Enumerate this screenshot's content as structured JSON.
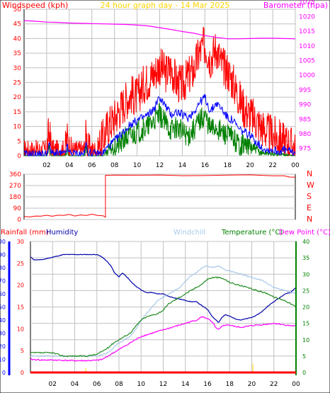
{
  "header": {
    "windspeed_label": "Windspeed (kph)",
    "title": "24 hour graph day - 14 Mar 2025",
    "barometer_label": "Barometer (hpa)"
  },
  "colors": {
    "background": "#ffffff",
    "grid": "#c0c0c0",
    "frame": "#000000",
    "windspeed_axis": "#ff0000",
    "title": "#ffd400",
    "barometer": "#ff00ff",
    "gust": "#ff0000",
    "average": "#0000ff",
    "wind_low": "#008000",
    "wind_direction": "#ff0000",
    "rainfall": "#ff0000",
    "humidity": "#0000aa",
    "windchill": "#a8c8e8",
    "temperature": "#228b22",
    "dewpoint": "#ff00ff",
    "rain_event": "#ffd700",
    "humidity_axis": "#0000ff",
    "temp_axis": "#008000"
  },
  "bottom_header": {
    "rainfall_label": "Rainfall (mm)",
    "humidity_label": "Humidity",
    "windchill_label": "Windchill",
    "temperature_label": "Temperature (°C)",
    "dewpoint_label": "Dew Point (°C)"
  },
  "direction_labels": [
    "N",
    "W",
    "S",
    "E",
    "N"
  ],
  "x_ticks": [
    "02",
    "04",
    "06",
    "08",
    "10",
    "12",
    "14",
    "16",
    "18",
    "20",
    "22",
    "00"
  ],
  "chart_data": [
    {
      "type": "line",
      "id": "wind",
      "title": "24 hour graph day - 14 Mar 2025",
      "ylabel": "Windspeed (kph)",
      "y2label": "Barometer (hpa)",
      "xlim": [
        0,
        24
      ],
      "ylim": [
        0,
        50
      ],
      "y_ticks": [
        0,
        5,
        10,
        15,
        20,
        25,
        30,
        35,
        40,
        45,
        50
      ],
      "y2lim": [
        972.5,
        1022.5
      ],
      "y2_ticks": [
        975,
        980,
        985,
        990,
        995,
        1000,
        1005,
        1010,
        1015,
        1020,
        1025
      ],
      "series": [
        {
          "name": "Gust",
          "x": [
            0,
            2,
            2.2,
            2.4,
            2.6,
            3.6,
            3.8,
            4.0,
            4.3,
            5.3,
            5.5,
            5.7,
            6.0,
            6.5,
            6.7,
            7.0,
            7.4,
            8.0,
            8.5,
            9.0,
            9.5,
            10.0,
            10.5,
            11.0,
            11.5,
            12.0,
            12.5,
            13.0,
            13.5,
            14.0,
            14.5,
            15.0,
            15.5,
            16.0,
            16.5,
            17.0,
            17.5,
            18.0,
            18.5,
            19.0,
            19.5,
            20.0,
            20.5,
            21.0,
            21.5,
            22.0,
            22.5,
            23.0,
            23.5,
            24.0
          ],
          "values": [
            2,
            2,
            8,
            3,
            2,
            2,
            6,
            3,
            2,
            2,
            7,
            3,
            2,
            2,
            4,
            6,
            10,
            13,
            16,
            19,
            21,
            20,
            24,
            26,
            28,
            31,
            28,
            30,
            25,
            24,
            27,
            29,
            35,
            38,
            33,
            37,
            31,
            29,
            25,
            20,
            16,
            14,
            12,
            10,
            8,
            7,
            6,
            5,
            4,
            3
          ]
        },
        {
          "name": "Average",
          "x": [
            0,
            2,
            2.2,
            2.4,
            3.6,
            3.8,
            4.0,
            5.3,
            5.5,
            5.7,
            6.5,
            7.0,
            7.4,
            8.0,
            8.5,
            9.0,
            9.5,
            10.0,
            10.5,
            11.0,
            11.5,
            12.0,
            12.5,
            13.0,
            13.5,
            14.0,
            14.5,
            15.0,
            15.5,
            16.0,
            16.5,
            17.0,
            17.5,
            18.0,
            18.5,
            19.0,
            19.5,
            20.0,
            20.5,
            21.0,
            21.5,
            22.0,
            22.5,
            23.0,
            23.5,
            24.0
          ],
          "values": [
            0.5,
            0.5,
            4,
            1,
            0.5,
            3,
            1,
            0.5,
            4,
            1,
            0.5,
            1,
            3,
            5,
            7,
            9,
            11,
            12,
            13,
            14,
            16,
            20,
            17,
            14,
            15,
            14,
            13,
            15,
            18,
            20,
            15,
            18,
            16,
            13,
            12,
            9,
            8,
            7,
            5,
            3,
            2,
            2,
            1.5,
            2,
            1.5,
            1
          ]
        },
        {
          "name": "Low",
          "x": [
            0,
            2,
            2.2,
            2.4,
            3.6,
            3.8,
            4.0,
            5.3,
            5.5,
            5.7,
            7.0,
            7.5,
            8.0,
            8.5,
            9.0,
            9.5,
            10.0,
            10.5,
            11.0,
            11.5,
            12.0,
            12.5,
            13.0,
            13.5,
            14.0,
            14.5,
            15.0,
            15.5,
            16.0,
            16.5,
            17.0,
            17.5,
            18.0,
            18.5,
            19.0,
            19.5,
            20.0,
            20.5,
            21.0,
            21.5,
            22.0,
            23.0,
            24.0
          ],
          "values": [
            0,
            0,
            2,
            0,
            0,
            1.5,
            0,
            0,
            2,
            0,
            0,
            2,
            3,
            4,
            6,
            7,
            8,
            9,
            10,
            12,
            14,
            11,
            9,
            10,
            8,
            7,
            9,
            12,
            14,
            9,
            10,
            8,
            7,
            6,
            4,
            4,
            3,
            2,
            1,
            1,
            0.5,
            0.5,
            0
          ]
        },
        {
          "name": "Barometer",
          "axis": "right",
          "x": [
            0,
            1,
            2,
            3,
            4,
            5,
            6,
            7,
            8,
            9,
            10,
            11,
            12,
            13,
            14,
            15,
            16,
            17,
            18,
            19,
            20,
            21,
            22,
            23,
            24
          ],
          "values": [
            1018.6,
            1018.4,
            1018.1,
            1018.0,
            1017.8,
            1017.7,
            1017.6,
            1017.5,
            1017.4,
            1017.3,
            1017.1,
            1016.8,
            1016.2,
            1015.6,
            1014.9,
            1014.3,
            1013.5,
            1012.9,
            1012.4,
            1012.4,
            1012.5,
            1012.6,
            1012.6,
            1012.5,
            1012.4
          ]
        }
      ]
    },
    {
      "type": "line",
      "id": "direction",
      "xlim": [
        0,
        24
      ],
      "ylim": [
        0,
        360
      ],
      "y_ticks": [
        0,
        90,
        180,
        270,
        360
      ],
      "series": [
        {
          "name": "Direction",
          "x": [
            0,
            0.5,
            1,
            1.5,
            2,
            2.5,
            3,
            3.5,
            4,
            4.5,
            5,
            5.5,
            6,
            6.5,
            7,
            7.2,
            7.2,
            8,
            10,
            12,
            14,
            16,
            18,
            20,
            22,
            23,
            23.5,
            24
          ],
          "values": [
            25,
            20,
            30,
            28,
            34,
            26,
            37,
            30,
            40,
            28,
            38,
            30,
            42,
            35,
            30,
            20,
            350,
            355,
            352,
            354,
            350,
            352,
            350,
            352,
            350,
            348,
            335,
            338
          ]
        }
      ]
    },
    {
      "type": "line",
      "id": "temperature",
      "xlim": [
        0,
        24
      ],
      "rain_ylim": [
        0,
        30
      ],
      "rain_ticks": [
        0,
        5,
        10,
        15,
        20,
        25,
        30
      ],
      "humidity_ylim": [
        0,
        100
      ],
      "humidity_ticks": [
        0,
        10,
        20,
        30,
        40,
        50,
        60,
        70,
        80,
        90,
        100
      ],
      "temp_ylim": [
        0,
        40
      ],
      "temp_ticks": [
        0,
        5,
        10,
        15,
        20,
        25,
        30,
        35,
        40
      ],
      "series": [
        {
          "name": "Humidity",
          "axis": "humidity",
          "x": [
            0,
            0.2,
            0.3,
            1,
            1.5,
            2,
            2.5,
            3,
            4,
            5,
            6,
            6.5,
            7,
            7.3,
            7.6,
            8,
            8.3,
            8.6,
            9,
            9.5,
            10,
            10.5,
            11,
            11.5,
            12,
            12.5,
            13,
            13.5,
            14,
            14.5,
            15,
            15.5,
            16,
            16.5,
            16.8,
            17,
            17.3,
            17.6,
            18,
            18.5,
            19,
            19.5,
            20,
            20.5,
            21,
            21.5,
            22,
            22.5,
            23,
            23.5,
            24
          ],
          "values": [
            88,
            87,
            86,
            86,
            87,
            88,
            89,
            90,
            90,
            90,
            90,
            88,
            84,
            81,
            76,
            73,
            76,
            74,
            70,
            66,
            63,
            61,
            61,
            60,
            60,
            58,
            57,
            56,
            55,
            54,
            54,
            51,
            48,
            42,
            40,
            38,
            42,
            44,
            43,
            41,
            40,
            41,
            42,
            44,
            47,
            51,
            54,
            57,
            60,
            61,
            65
          ]
        },
        {
          "name": "Windchill",
          "axis": "temp",
          "x": [
            0,
            2,
            4,
            6,
            7,
            7.5,
            8,
            8.5,
            9,
            9.5,
            10,
            10.5,
            11,
            11.5,
            12,
            12.5,
            13,
            13.5,
            14,
            14.5,
            15,
            15.5,
            16,
            16.5,
            17,
            17.5,
            18,
            18.5,
            19,
            19.5,
            20,
            20.5,
            21,
            21.5,
            22,
            22.5,
            23,
            23.5,
            24
          ],
          "values": [
            5,
            5,
            5,
            5,
            6,
            7.5,
            9,
            10,
            11,
            13,
            16,
            18,
            20,
            22,
            23,
            24,
            25,
            26,
            28,
            29.5,
            30.5,
            32,
            32.5,
            32,
            32.5,
            31.5,
            31,
            30.5,
            30,
            29.5,
            29,
            28.5,
            28,
            27,
            26,
            25.5,
            25,
            24.5,
            24
          ]
        },
        {
          "name": "Temperature (°C)",
          "axis": "temp",
          "x": [
            0,
            1,
            2,
            3,
            4,
            5,
            6,
            6.5,
            7,
            7.5,
            8,
            8.5,
            9,
            9.5,
            10,
            10.5,
            11,
            11.5,
            12,
            12.5,
            13,
            13.5,
            14,
            14.5,
            15,
            15.5,
            16,
            16.5,
            17,
            17.5,
            18,
            18.5,
            19,
            19.5,
            20,
            20.5,
            21,
            21.5,
            22,
            22.5,
            23,
            23.5,
            24
          ],
          "values": [
            6,
            6,
            6,
            5,
            5,
            5,
            5.5,
            6.5,
            7.5,
            9,
            10,
            11,
            12,
            14,
            16,
            17,
            17.5,
            18,
            19,
            21,
            22,
            23,
            24,
            25,
            26,
            27,
            28.5,
            29,
            29,
            28.5,
            27.5,
            27,
            26.5,
            26,
            25.5,
            25,
            24.5,
            24,
            23,
            22.5,
            22,
            21,
            20
          ]
        },
        {
          "name": "Dew Point (°C)",
          "axis": "temp",
          "x": [
            0,
            1,
            2,
            3,
            4,
            5,
            6,
            6.5,
            7,
            7.5,
            8,
            8.5,
            9,
            9.5,
            10,
            10.5,
            11,
            11.5,
            12,
            12.5,
            13,
            13.5,
            14,
            14.5,
            15,
            15.5,
            16,
            16.5,
            16.8,
            17,
            17.3,
            17.6,
            18,
            18.5,
            19,
            19.5,
            20,
            20.5,
            21,
            21.5,
            22,
            22.5,
            23,
            23.5,
            24
          ],
          "values": [
            4,
            3.8,
            3.8,
            3.7,
            3.6,
            3.6,
            3.7,
            4,
            5,
            6,
            7,
            8,
            9,
            10,
            11,
            11.5,
            12,
            12.5,
            13,
            13.5,
            14,
            14.5,
            15,
            15.5,
            16,
            17,
            16.5,
            15,
            13.5,
            13,
            14,
            14.5,
            14.5,
            14,
            13.8,
            14,
            14.3,
            14.5,
            14.6,
            14.8,
            15,
            14.8,
            14.5,
            14.3,
            14.2
          ]
        },
        {
          "name": "Rain events",
          "axis": "rain",
          "x": [
            5.0,
            20.1
          ],
          "values": [
            1,
            2
          ]
        }
      ]
    }
  ]
}
